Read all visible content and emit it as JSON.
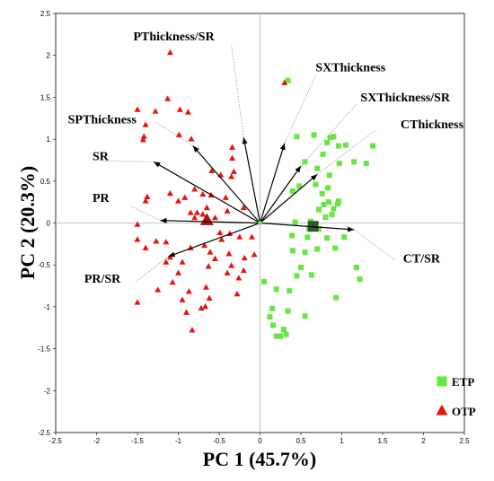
{
  "chart_data": {
    "type": "scatter",
    "subtype": "pca-biplot",
    "xlabel": "PC 1 (45.7%)",
    "ylabel": "PC 2 (20.3%)",
    "xlim": [
      -2.5,
      2.5
    ],
    "ylim": [
      -2.5,
      2.5
    ],
    "xticks": [
      "-2.5",
      "-2",
      "-1.5",
      "-1",
      "-0.5",
      "0",
      "0.5",
      "1",
      "1.5",
      "2",
      "2.5"
    ],
    "yticks": [
      "2.5",
      "2",
      "1.5",
      "1",
      "0.5",
      "0",
      "-0.5",
      "-1",
      "-1.5",
      "-2",
      "-2.5"
    ],
    "grid": false,
    "legend_position": "bottom-right",
    "colors": {
      "ETP": "#66e640",
      "OTP": "#e8120c",
      "ETP_centroid": "#2e5a2a",
      "OTP_centroid": "#b01010"
    },
    "series": [
      {
        "name": "ETP",
        "marker": "square",
        "points": [
          [
            0.34,
            1.7
          ],
          [
            0.45,
            1.03
          ],
          [
            0.66,
            1.05
          ],
          [
            0.86,
            1.02
          ],
          [
            0.9,
            1.03
          ],
          [
            0.82,
            0.96
          ],
          [
            0.96,
            0.92
          ],
          [
            0.55,
            0.73
          ],
          [
            0.77,
            0.82
          ],
          [
            0.97,
            0.71
          ],
          [
            1.05,
            0.93
          ],
          [
            1.15,
            0.73
          ],
          [
            1.3,
            0.71
          ],
          [
            1.38,
            0.92
          ],
          [
            0.85,
            0.57
          ],
          [
            0.83,
            0.42
          ],
          [
            0.7,
            0.65
          ],
          [
            0.68,
            0.46
          ],
          [
            0.76,
            0.35
          ],
          [
            0.48,
            0.44
          ],
          [
            0.4,
            0.38
          ],
          [
            0.78,
            0.22
          ],
          [
            0.84,
            0.25
          ],
          [
            0.95,
            0.23
          ],
          [
            0.72,
            0.16
          ],
          [
            0.88,
            0.1
          ],
          [
            0.9,
            0.17
          ],
          [
            0.96,
            0.26
          ],
          [
            0.8,
            0.07
          ],
          [
            0.62,
            0.02
          ],
          [
            0.43,
            0.01
          ],
          [
            0.6,
            -0.07
          ],
          [
            0.72,
            -0.07
          ],
          [
            0.39,
            -0.15
          ],
          [
            0.58,
            -0.17
          ],
          [
            0.82,
            -0.18
          ],
          [
            1.03,
            -0.17
          ],
          [
            0.92,
            -0.3
          ],
          [
            0.7,
            -0.31
          ],
          [
            0.4,
            -0.33
          ],
          [
            0.55,
            -0.35
          ],
          [
            1.18,
            -0.53
          ],
          [
            1.22,
            -0.67
          ],
          [
            0.5,
            -0.53
          ],
          [
            0.05,
            -0.7
          ],
          [
            0.45,
            -0.63
          ],
          [
            0.63,
            -0.62
          ],
          [
            0.2,
            -0.79
          ],
          [
            0.36,
            -0.81
          ],
          [
            0.93,
            -0.89
          ],
          [
            0.15,
            -1.02
          ],
          [
            0.34,
            -1.05
          ],
          [
            0.55,
            -1.11
          ],
          [
            0.12,
            -1.12
          ],
          [
            0.16,
            -1.22
          ],
          [
            0.2,
            -1.35
          ],
          [
            0.25,
            -1.35
          ],
          [
            0.29,
            -1.27
          ],
          [
            0.32,
            -1.33
          ]
        ]
      },
      {
        "name": "OTP",
        "marker": "triangle",
        "points": [
          [
            -1.1,
            2.03
          ],
          [
            0.3,
            1.67
          ],
          [
            -1.13,
            1.48
          ],
          [
            -0.98,
            1.35
          ],
          [
            -1.5,
            1.35
          ],
          [
            -1.28,
            1.33
          ],
          [
            -0.88,
            1.32
          ],
          [
            -1.4,
            1.17
          ],
          [
            -1.42,
            1.03
          ],
          [
            -0.99,
            1.05
          ],
          [
            -0.84,
            1.0
          ],
          [
            -1.43,
            0.99
          ],
          [
            -0.34,
            0.9
          ],
          [
            -0.34,
            0.77
          ],
          [
            -0.32,
            0.61
          ],
          [
            -0.59,
            0.62
          ],
          [
            -0.48,
            0.57
          ],
          [
            -0.35,
            0.55
          ],
          [
            -0.8,
            0.4
          ],
          [
            -0.7,
            0.34
          ],
          [
            -0.6,
            0.33
          ],
          [
            -0.42,
            0.3
          ],
          [
            -1.1,
            0.35
          ],
          [
            -0.92,
            0.3
          ],
          [
            -1.0,
            0.26
          ],
          [
            -1.38,
            0.31
          ],
          [
            -1.4,
            0.26
          ],
          [
            -0.65,
            0.18
          ],
          [
            -0.77,
            0.12
          ],
          [
            -0.85,
            0.12
          ],
          [
            -0.7,
            0.1
          ],
          [
            -0.2,
            0.18
          ],
          [
            -0.4,
            0.14
          ],
          [
            -0.55,
            0.06
          ],
          [
            -0.8,
            0.06
          ],
          [
            -1.5,
            -0.02
          ],
          [
            -0.49,
            -0.12
          ],
          [
            -0.37,
            -0.13
          ],
          [
            -0.25,
            -0.17
          ],
          [
            -0.1,
            -0.17
          ],
          [
            -0.47,
            -0.2
          ],
          [
            -1.5,
            -0.2
          ],
          [
            -1.27,
            -0.22
          ],
          [
            -1.15,
            -0.23
          ],
          [
            -1.4,
            -0.3
          ],
          [
            -0.85,
            -0.3
          ],
          [
            -0.68,
            -0.27
          ],
          [
            -0.61,
            -0.35
          ],
          [
            -0.38,
            -0.37
          ],
          [
            -1.1,
            -0.41
          ],
          [
            -0.55,
            -0.43
          ],
          [
            -0.19,
            -0.42
          ],
          [
            -0.07,
            -0.38
          ],
          [
            -1.15,
            -0.47
          ],
          [
            -0.35,
            -0.51
          ],
          [
            -0.63,
            -0.52
          ],
          [
            -0.95,
            -0.47
          ],
          [
            -0.2,
            -0.57
          ],
          [
            -0.4,
            -0.6
          ],
          [
            -0.26,
            -0.66
          ],
          [
            -1.0,
            -0.6
          ],
          [
            -1.07,
            -0.71
          ],
          [
            -1.25,
            -0.8
          ],
          [
            -0.87,
            -0.82
          ],
          [
            -0.66,
            -0.77
          ],
          [
            -0.28,
            -0.85
          ],
          [
            -0.62,
            -0.9
          ],
          [
            -1.5,
            -0.95
          ],
          [
            -0.95,
            -0.92
          ],
          [
            -0.67,
            -1.0
          ],
          [
            -0.72,
            -1.02
          ],
          [
            -0.9,
            -1.07
          ],
          [
            -0.83,
            -1.28
          ]
        ]
      }
    ],
    "centroids": [
      {
        "name": "ETP",
        "marker": "square",
        "point": [
          0.65,
          -0.04
        ]
      },
      {
        "name": "OTP",
        "marker": "triangle",
        "point": [
          -0.65,
          0.03
        ]
      }
    ],
    "loadings": [
      {
        "name": "PThickness/SR",
        "x": -0.2,
        "y": 1.02,
        "label_at": [
          -1.55,
          2.18
        ],
        "leader": [
          [
            -0.35,
            2.12
          ],
          [
            -0.2,
            1.02
          ]
        ]
      },
      {
        "name": "SXThickness",
        "x": 0.3,
        "y": 0.95,
        "label_at": [
          0.68,
          1.81
        ],
        "leader": [
          [
            0.68,
            1.76
          ],
          [
            0.3,
            0.95
          ]
        ]
      },
      {
        "name": "SXThickness/SR",
        "x": 0.5,
        "y": 0.68,
        "label_at": [
          1.23,
          1.45
        ],
        "leader": [
          [
            1.18,
            1.42
          ],
          [
            0.5,
            0.68
          ]
        ]
      },
      {
        "name": "CThickness",
        "x": 0.7,
        "y": 0.58,
        "label_at": [
          1.72,
          1.13
        ],
        "leader": [
          [
            1.4,
            1.1
          ],
          [
            0.7,
            0.58
          ]
        ]
      },
      {
        "name": "SPThickness",
        "x": -0.82,
        "y": 0.92,
        "label_at": [
          -2.35,
          1.19
        ],
        "leader": [
          [
            -1.27,
            1.2
          ],
          [
            -0.82,
            0.92
          ]
        ]
      },
      {
        "name": "SR",
        "x": -1.3,
        "y": 0.73,
        "label_at": [
          -2.05,
          0.75
        ],
        "leader": [
          [
            -1.9,
            0.74
          ],
          [
            -1.3,
            0.73
          ]
        ]
      },
      {
        "name": "PR",
        "x": -1.22,
        "y": 0.03,
        "label_at": [
          -2.05,
          0.25
        ],
        "leader": [
          [
            -1.58,
            0.2
          ],
          [
            -1.22,
            0.03
          ]
        ]
      },
      {
        "name": "CT/SR",
        "x": 1.15,
        "y": -0.08,
        "label_at": [
          1.75,
          -0.47
        ],
        "leader": [
          [
            1.65,
            -0.44
          ],
          [
            1.15,
            -0.08
          ]
        ]
      },
      {
        "name": "PR/SR",
        "x": -1.12,
        "y": -0.4,
        "label_at": [
          -2.15,
          -0.71
        ],
        "leader": [
          [
            -1.52,
            -0.7
          ],
          [
            -1.12,
            -0.4
          ]
        ]
      }
    ],
    "legend": [
      {
        "name": "ETP",
        "marker": "square"
      },
      {
        "name": "OTP",
        "marker": "triangle"
      }
    ]
  }
}
